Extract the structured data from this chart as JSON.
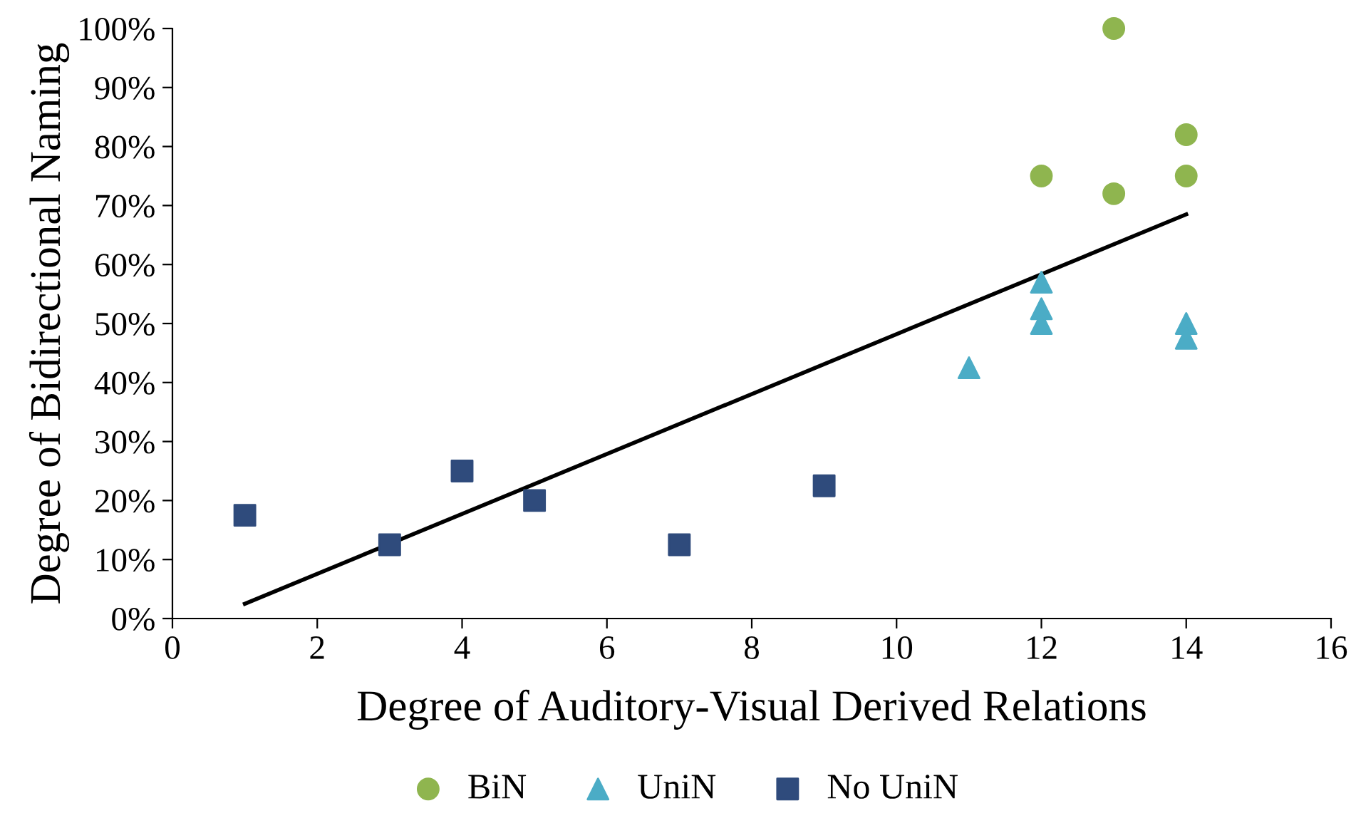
{
  "chart_data": {
    "type": "scatter",
    "xlabel": "Degree of Auditory-Visual Derived Relations",
    "ylabel": "Degree of Bidirectional Naming",
    "xlim": [
      0,
      16
    ],
    "xticks": [
      0,
      2,
      4,
      6,
      8,
      10,
      12,
      14,
      16
    ],
    "ylim": [
      0,
      100
    ],
    "yticks": [
      {
        "value": 0,
        "label": "0%"
      },
      {
        "value": 10,
        "label": "10%"
      },
      {
        "value": 20,
        "label": "20%"
      },
      {
        "value": 30,
        "label": "30%"
      },
      {
        "value": 40,
        "label": "40%"
      },
      {
        "value": 50,
        "label": "50%"
      },
      {
        "value": 60,
        "label": "60%"
      },
      {
        "value": 70,
        "label": "70%"
      },
      {
        "value": 80,
        "label": "80%"
      },
      {
        "value": 90,
        "label": "90%"
      },
      {
        "value": 100,
        "label": "100%"
      }
    ],
    "grid": false,
    "legend": "bottom",
    "series": [
      {
        "name": "BiN",
        "color": "#8fb54f",
        "marker": "circle",
        "x": [
          12,
          13,
          13,
          14,
          14
        ],
        "values": [
          75,
          100,
          72,
          82,
          75
        ]
      },
      {
        "name": "UniN",
        "color": "#4bacc6",
        "marker": "triangle",
        "x": [
          11,
          12,
          12,
          12,
          14,
          14
        ],
        "values": [
          42.5,
          57,
          52.5,
          50,
          50,
          47.5
        ]
      },
      {
        "name": "No UniN",
        "color": "#2f4b7c",
        "marker": "square",
        "x": [
          1,
          3,
          4,
          5,
          7,
          9
        ],
        "values": [
          17.5,
          12.5,
          25,
          20,
          12.5,
          22.5
        ]
      },
      {
        "type": "line",
        "color": "#000000",
        "marker": "none",
        "line_style": "solid",
        "x": [
          1,
          14
        ],
        "values": [
          2.5,
          68.5
        ]
      }
    ]
  }
}
